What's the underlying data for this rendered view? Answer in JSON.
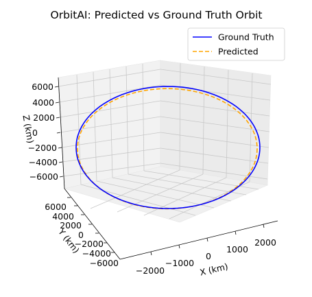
{
  "chart_data": {
    "type": "line",
    "title": "OrbitAI: Predicted vs Ground Truth Orbit",
    "xlabel": "X (km)",
    "ylabel": "Y (km)",
    "zlabel": "Z (km)",
    "xlim": [
      -2400,
      2400
    ],
    "ylim": [
      -6800,
      6800
    ],
    "zlim": [
      -6800,
      6800
    ],
    "xticks": [
      "−2000",
      "−1000",
      "0",
      "1000",
      "2000"
    ],
    "yticks": [
      "6000",
      "4000",
      "2000",
      "0",
      "−2000",
      "−4000",
      "−6000"
    ],
    "zticks": [
      "6000",
      "4000",
      "2000",
      "0",
      "−2000",
      "−4000",
      "−6000"
    ],
    "grid": true,
    "legend_position": "top-right",
    "series": [
      {
        "name": "Ground Truth",
        "color": "#0000ff",
        "style": "solid",
        "orbit": {
          "semi_axis_a_km": 2250,
          "semi_axis_b_km": 6300,
          "inclination_deg": 30
        }
      },
      {
        "name": "Predicted",
        "color": "#ffa500",
        "style": "dashed",
        "orbit": {
          "semi_axis_a_km": 2200,
          "semi_axis_b_km": 6200,
          "inclination_deg": 30
        }
      }
    ]
  }
}
